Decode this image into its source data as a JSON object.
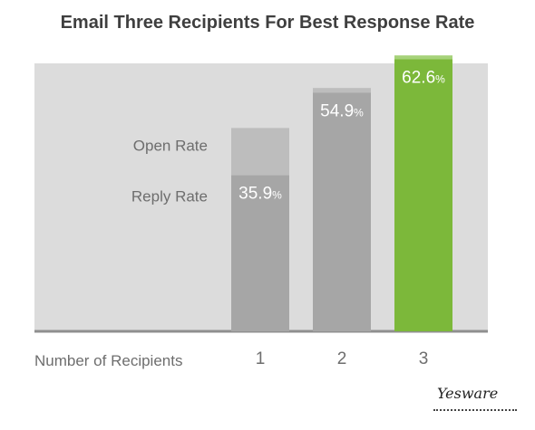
{
  "chart_data": {
    "type": "bar",
    "title": "Email Three Recipients For Best Response Rate",
    "xlabel": "Number of Recipients",
    "ylabel": "",
    "ylim": [
      0,
      80
    ],
    "categories": [
      "1",
      "2",
      "3"
    ],
    "series": [
      {
        "name": "Open Rate",
        "values": [
          46.8,
          56.0,
          63.5
        ]
      },
      {
        "name": "Reply Rate",
        "values": [
          35.9,
          54.9,
          62.6
        ]
      }
    ],
    "value_labels": [
      "35.9%",
      "54.9%",
      "62.6%"
    ],
    "highlight_category": "3",
    "colors": {
      "panel": "#dcdcdc",
      "open": "#bdbdbd",
      "reply": "#a6a6a6",
      "open_highlight": "#a6d27a",
      "reply_highlight": "#7cb83a",
      "baseline": "#8f8f8f"
    },
    "grid": false,
    "legend": "left"
  },
  "brand": "Yesware"
}
